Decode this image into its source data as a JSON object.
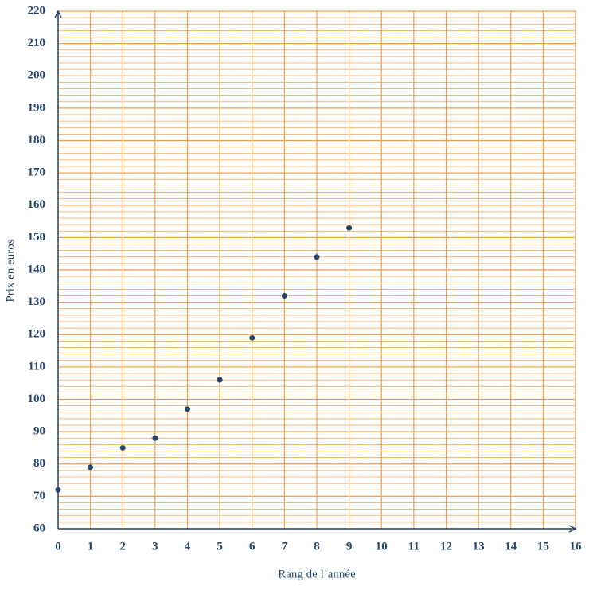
{
  "chart_data": {
    "type": "scatter",
    "xlabel": "Rang de l’année",
    "ylabel": "Prix en euros",
    "x": [
      0,
      1,
      2,
      3,
      4,
      5,
      6,
      7,
      8,
      9
    ],
    "values": [
      72,
      79,
      85,
      88,
      97,
      106,
      119,
      132,
      144,
      153
    ],
    "color": "#24466b",
    "grid_color": "#f0a04b",
    "axis_color": "#24466b",
    "xlim": [
      0,
      16
    ],
    "ylim": [
      60,
      220
    ],
    "xticks": [
      0,
      1,
      2,
      3,
      4,
      5,
      6,
      7,
      8,
      9,
      10,
      11,
      12,
      13,
      14,
      15,
      16
    ],
    "yticks": [
      60,
      70,
      80,
      90,
      100,
      110,
      120,
      130,
      140,
      150,
      160,
      170,
      180,
      190,
      200,
      210,
      220
    ],
    "y_minor_grid": [
      62,
      64,
      66,
      68,
      72,
      74,
      76,
      78,
      82,
      84,
      86,
      88,
      92,
      94,
      96,
      98,
      102,
      104,
      106,
      108,
      112,
      114,
      116,
      118,
      122,
      124,
      126,
      128,
      132,
      134,
      136,
      138,
      142,
      144,
      146,
      148,
      152,
      154,
      156,
      158,
      162,
      164,
      166,
      168,
      172,
      174,
      176,
      178,
      182,
      184,
      186,
      188,
      192,
      194,
      196,
      198,
      202,
      204,
      206,
      208,
      212,
      214,
      216,
      218
    ],
    "grid": true
  }
}
